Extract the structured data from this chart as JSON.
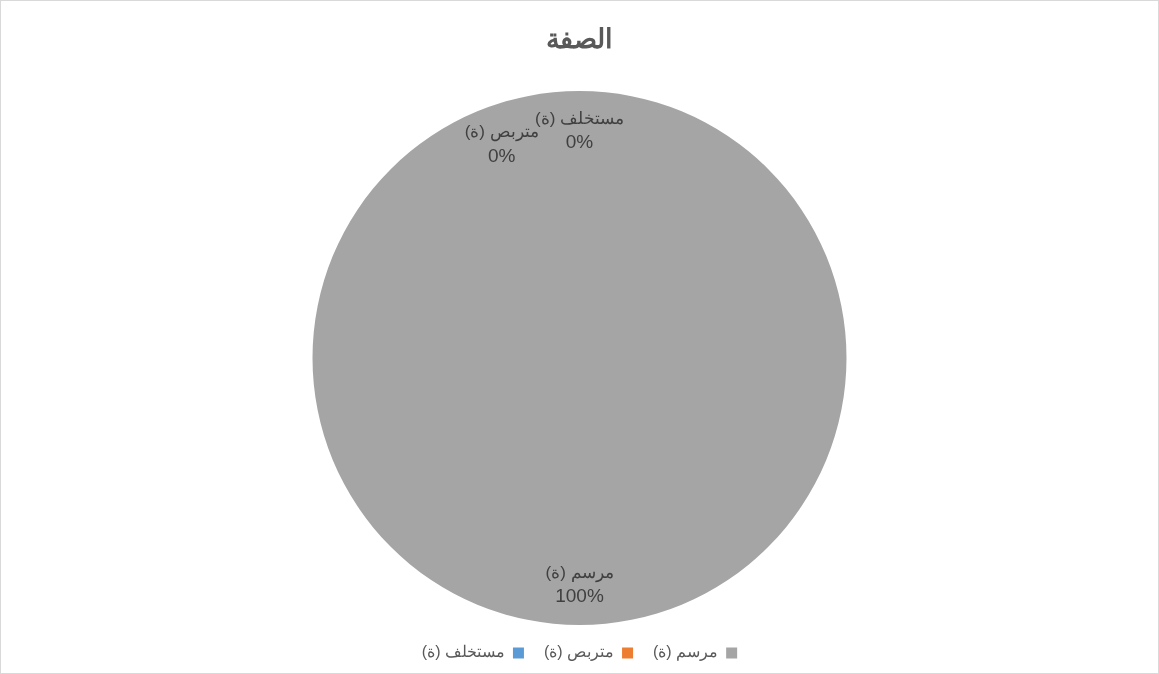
{
  "chart_data": {
    "type": "pie",
    "title": "الصفة",
    "categories": [
      "مستخلف (ة)",
      "متربص (ة)",
      "مرسم (ة)"
    ],
    "values": [
      0,
      0,
      100
    ],
    "colors": [
      "#5b9bd5",
      "#ed7d31",
      "#a5a5a5"
    ],
    "value_labels": [
      "0%",
      "0%",
      "100%"
    ],
    "legend": "bottom"
  }
}
